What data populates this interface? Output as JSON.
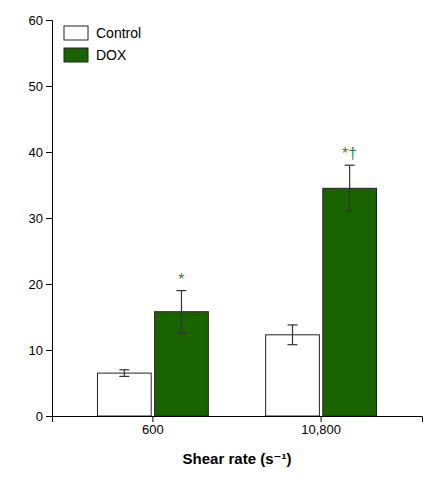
{
  "chart_data": {
    "type": "bar",
    "categories": [
      "600",
      "10,800"
    ],
    "xlabel": "Shear rate (s⁻¹)",
    "series": [
      {
        "name": "Control",
        "color": "#ffffff",
        "values": [
          6.5,
          12.3
        ],
        "errors": [
          0.5,
          1.5
        ]
      },
      {
        "name": "DOX",
        "color": "#1a6400",
        "values": [
          15.8,
          34.5
        ],
        "errors": [
          3.2,
          3.5
        ]
      }
    ],
    "ylim": [
      0,
      60
    ],
    "yticks": [
      0,
      10,
      20,
      30,
      40,
      50,
      60
    ],
    "legend": "upper left",
    "annotations": [
      {
        "text": "*",
        "category": "600",
        "series": "DOX",
        "color": "#2d8c2d"
      },
      {
        "text": "*†",
        "category": "10,800",
        "series": "DOX",
        "color": "#2d8c2d"
      }
    ]
  }
}
